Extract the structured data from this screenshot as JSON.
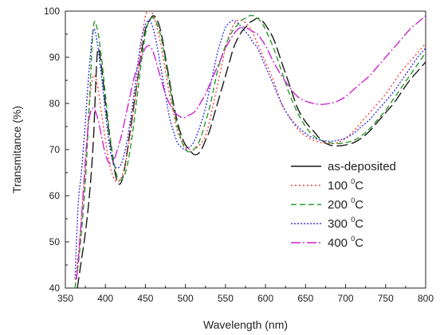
{
  "chart_data": {
    "type": "line",
    "xlabel": "Wavelength (nm)",
    "ylabel": "Transmitance (%)",
    "xlim": [
      350,
      800
    ],
    "ylim": [
      40,
      100
    ],
    "xticks": [
      350,
      400,
      450,
      500,
      550,
      600,
      650,
      700,
      750,
      800
    ],
    "yticks": [
      40,
      50,
      60,
      70,
      80,
      90,
      100
    ],
    "grid": false,
    "legend_position": "right",
    "series": [
      {
        "name": "as-deposited",
        "legend_main": "as-deposited",
        "legend_sup": "",
        "legend_suffix": "",
        "color": "#1a1a1a",
        "dash": "14,5",
        "legend_dash": "none",
        "x": [
          365,
          370,
          375,
          380,
          385,
          390,
          395,
          400,
          405,
          410,
          415,
          420,
          425,
          430,
          435,
          440,
          445,
          450,
          455,
          460,
          465,
          470,
          475,
          480,
          485,
          490,
          495,
          500,
          505,
          510,
          515,
          520,
          525,
          530,
          535,
          540,
          545,
          550,
          555,
          560,
          565,
          570,
          575,
          580,
          585,
          590,
          595,
          600,
          610,
          620,
          630,
          640,
          650,
          660,
          670,
          680,
          690,
          700,
          710,
          720,
          730,
          740,
          750,
          760,
          770,
          780,
          790,
          800
        ],
        "y": [
          40,
          46,
          52,
          60,
          72,
          91,
          88,
          80,
          73,
          67,
          63,
          63,
          67,
          73,
          79,
          85,
          91,
          96,
          98,
          99,
          98,
          95,
          90,
          85,
          80,
          76,
          73,
          71,
          70,
          69,
          69,
          70,
          72,
          74,
          77,
          80,
          83,
          86,
          89,
          92,
          94,
          95.5,
          96.5,
          97.5,
          98,
          98.5,
          98,
          97,
          94,
          89,
          84,
          79,
          76,
          74,
          72,
          71,
          70.8,
          71,
          71.5,
          72.5,
          74,
          76,
          78,
          80,
          82.5,
          85,
          87,
          89
        ]
      },
      {
        "name": "100 °C",
        "legend_main": "100 ",
        "legend_sup": "0",
        "legend_suffix": "C",
        "color": "#ff3b3b",
        "dash": "2,3",
        "legend_dash": "2,3",
        "x": [
          362,
          366,
          370,
          375,
          380,
          385,
          390,
          395,
          400,
          405,
          410,
          415,
          420,
          425,
          430,
          435,
          440,
          445,
          450,
          455,
          460,
          465,
          470,
          475,
          480,
          485,
          490,
          495,
          500,
          505,
          510,
          515,
          520,
          525,
          530,
          535,
          540,
          545,
          550,
          555,
          560,
          565,
          570,
          575,
          580,
          585,
          590,
          600,
          610,
          620,
          630,
          640,
          650,
          660,
          670,
          680,
          690,
          700,
          710,
          720,
          730,
          740,
          750,
          760,
          770,
          780,
          790,
          800
        ],
        "y": [
          40,
          47,
          55,
          66,
          80,
          86,
          84,
          78,
          72,
          67,
          64,
          63,
          64,
          67,
          72,
          78,
          85,
          93,
          99,
          100,
          99,
          96,
          92,
          87,
          82,
          78,
          74,
          72,
          70.5,
          70,
          70,
          70.5,
          71.5,
          73,
          76,
          80,
          84,
          88,
          92,
          95,
          97,
          98,
          98,
          97.5,
          96.5,
          95,
          93,
          89,
          85,
          80,
          77,
          74.5,
          73,
          72,
          71.5,
          71.3,
          71.5,
          72.5,
          74,
          76,
          78,
          80,
          82,
          84.5,
          87,
          89,
          91,
          93
        ]
      },
      {
        "name": "200 °C",
        "legend_main": "200 ",
        "legend_sup": "0",
        "legend_suffix": "C",
        "color": "#2b9b2b",
        "dash": "7,4",
        "legend_dash": "7,4",
        "x": [
          362,
          366,
          370,
          375,
          380,
          385,
          390,
          395,
          400,
          405,
          410,
          415,
          420,
          425,
          430,
          435,
          440,
          445,
          450,
          455,
          460,
          465,
          470,
          475,
          480,
          485,
          490,
          495,
          500,
          505,
          510,
          515,
          520,
          525,
          530,
          535,
          540,
          545,
          550,
          555,
          560,
          565,
          570,
          575,
          580,
          585,
          590,
          595,
          600,
          610,
          620,
          630,
          640,
          650,
          660,
          670,
          680,
          690,
          700,
          710,
          720,
          730,
          740,
          750,
          760,
          770,
          780,
          790,
          800
        ],
        "y": [
          40,
          45,
          52,
          63,
          80,
          96.5,
          96,
          90,
          82,
          74,
          68,
          64,
          63.5,
          65,
          69,
          75,
          82,
          89,
          95,
          98,
          98.5,
          97,
          94,
          89,
          84,
          79,
          75,
          72,
          70,
          69.5,
          70,
          71,
          73,
          76,
          79,
          83,
          87,
          90,
          92.5,
          94.5,
          96,
          97,
          98,
          98.5,
          99,
          99,
          98.5,
          97.5,
          96,
          92,
          87,
          82,
          78,
          75,
          73,
          72,
          71.5,
          71.3,
          71.5,
          72,
          73,
          74.5,
          76.5,
          78.5,
          81,
          83.5,
          86,
          88.5,
          91
        ]
      },
      {
        "name": "300 °C",
        "legend_main": "300 ",
        "legend_sup": "0",
        "legend_suffix": "C",
        "color": "#3a3adf",
        "dash": "2,2",
        "legend_dash": "2,2",
        "x": [
          362,
          366,
          370,
          375,
          380,
          385,
          390,
          395,
          400,
          405,
          410,
          415,
          420,
          425,
          430,
          435,
          440,
          445,
          450,
          455,
          460,
          465,
          470,
          475,
          480,
          485,
          490,
          495,
          500,
          505,
          510,
          515,
          520,
          525,
          530,
          535,
          540,
          545,
          550,
          555,
          560,
          565,
          570,
          575,
          580,
          585,
          590,
          600,
          610,
          620,
          630,
          640,
          650,
          660,
          670,
          680,
          690,
          700,
          710,
          720,
          730,
          740,
          750,
          760,
          770,
          780,
          790,
          800
        ],
        "y": [
          42,
          58,
          65,
          76,
          88,
          96,
          93,
          86,
          78,
          71,
          67,
          66,
          67,
          70,
          75,
          81,
          88,
          94,
          97,
          98,
          96,
          92,
          87,
          82,
          77,
          74,
          71.5,
          70.5,
          70,
          70.5,
          71.5,
          73.5,
          76,
          79,
          83,
          87,
          91,
          94,
          96.5,
          97.5,
          98,
          97.5,
          96.5,
          95.5,
          94.5,
          93,
          92,
          88,
          84,
          80,
          77,
          75,
          73.5,
          72.5,
          72,
          71.8,
          72,
          72.5,
          73.5,
          75,
          76.5,
          78.5,
          80.5,
          82.5,
          85,
          87.5,
          90,
          92
        ]
      },
      {
        "name": "400 °C",
        "legend_main": "400 ",
        "legend_sup": "0",
        "legend_suffix": "C",
        "color": "#cc22cc",
        "dash": "12,3,2,3",
        "legend_dash": "12,3,2,3",
        "x": [
          364,
          368,
          372,
          376,
          380,
          385,
          390,
          395,
          400,
          405,
          410,
          415,
          420,
          425,
          430,
          435,
          440,
          445,
          450,
          455,
          460,
          465,
          470,
          475,
          480,
          485,
          490,
          495,
          500,
          505,
          510,
          515,
          520,
          525,
          530,
          535,
          540,
          545,
          550,
          555,
          560,
          565,
          570,
          575,
          580,
          585,
          590,
          600,
          610,
          620,
          630,
          640,
          650,
          660,
          670,
          680,
          690,
          700,
          710,
          720,
          730,
          740,
          750,
          760,
          770,
          780,
          790,
          800
        ],
        "y": [
          42,
          50,
          60,
          70,
          77,
          79,
          77,
          73,
          69,
          67,
          67.5,
          70,
          73,
          77,
          81,
          85,
          88,
          90,
          92,
          92.5,
          91,
          88,
          85,
          82,
          80,
          78.5,
          77.5,
          77,
          77,
          77.5,
          78,
          79,
          80.5,
          82,
          84,
          86,
          88,
          90,
          92,
          93.5,
          95,
          96,
          96.5,
          96.5,
          96,
          95.5,
          95,
          92.5,
          89,
          86,
          83.5,
          81.5,
          80.5,
          80,
          79.8,
          80,
          80.5,
          81.5,
          83,
          84.5,
          86,
          88,
          90,
          92,
          94,
          96,
          97.5,
          99
        ]
      }
    ]
  }
}
